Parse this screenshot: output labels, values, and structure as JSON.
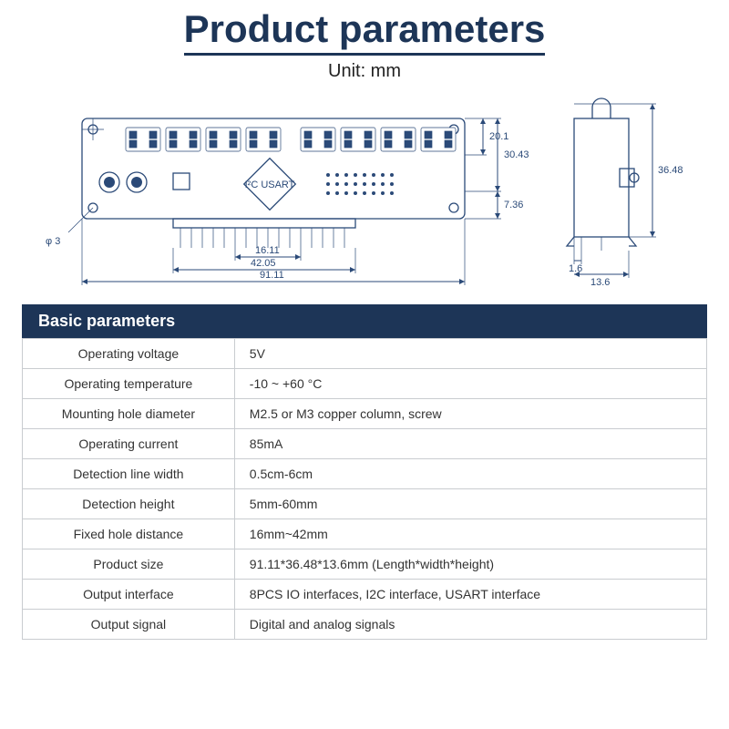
{
  "title": "Product parameters",
  "unit_label": "Unit: mm",
  "banner": "Basic parameters",
  "dimensions": {
    "board_width": "91.11",
    "board_height": "30.43",
    "top_band": "20.1",
    "bottom_band": "7.36",
    "hole_dia": "φ 3",
    "inner_w1": "16.11",
    "inner_w2": "42.05",
    "side_height": "36.48",
    "side_depth": "13.6",
    "side_small": "1.6"
  },
  "params": [
    {
      "label": "Operating voltage",
      "value": "5V"
    },
    {
      "label": "Operating temperature",
      "value": "-10 ~ +60 °C"
    },
    {
      "label": "Mounting hole diameter",
      "value": "M2.5 or M3 copper column, screw"
    },
    {
      "label": "Operating current",
      "value": "85mA"
    },
    {
      "label": "Detection line width",
      "value": "0.5cm-6cm"
    },
    {
      "label": "Detection height",
      "value": "5mm-60mm"
    },
    {
      "label": "Fixed hole distance",
      "value": "16mm~42mm"
    },
    {
      "label": "Product size",
      "value": "91.11*36.48*13.6mm (Length*width*height)"
    },
    {
      "label": "Output interface",
      "value": "8PCS IO interfaces, I2C interface, USART interface"
    },
    {
      "label": "Output signal",
      "value": "Digital and analog signals"
    }
  ],
  "colors": {
    "accent": "#1d3557",
    "line": "#2b4a78",
    "border": "#c9ccd0",
    "bg": "#ffffff",
    "text": "#333333"
  }
}
